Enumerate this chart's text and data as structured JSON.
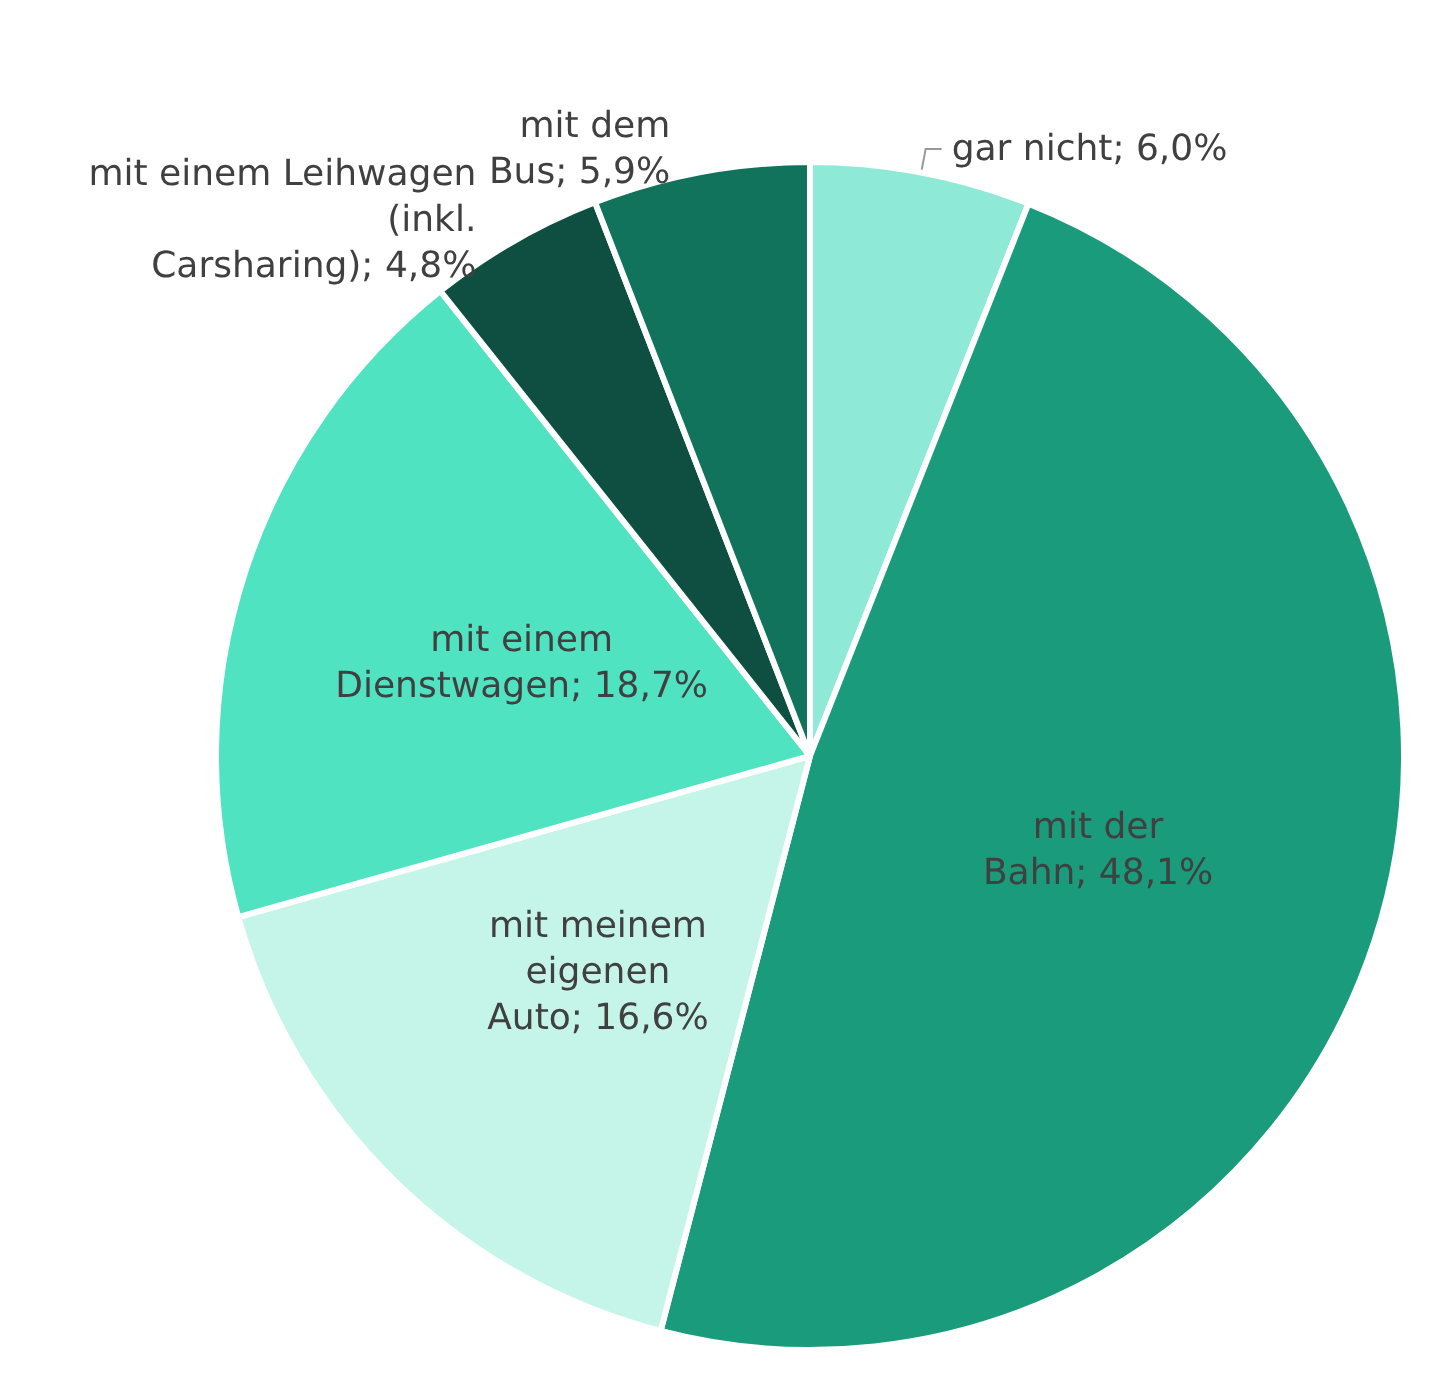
{
  "chart_data": {
    "type": "pie",
    "categories": [
      "gar nicht",
      "mit der Bahn",
      "mit meinem eigenen Auto",
      "mit einem Dienstwagen",
      "mit einem Leihwagen (inkl. Carsharing)",
      "mit dem Bus"
    ],
    "values": [
      6.0,
      48.1,
      16.6,
      18.7,
      4.8,
      5.9
    ],
    "value_labels": [
      "6,0%",
      "48,1%",
      "16,6%",
      "18,7%",
      "4,8%",
      "5,9%"
    ],
    "colors": [
      "#8eead6",
      "#1a9b7c",
      "#c5f5e8",
      "#50e3c2",
      "#0e4f42",
      "#11735c"
    ],
    "legend": false
  }
}
